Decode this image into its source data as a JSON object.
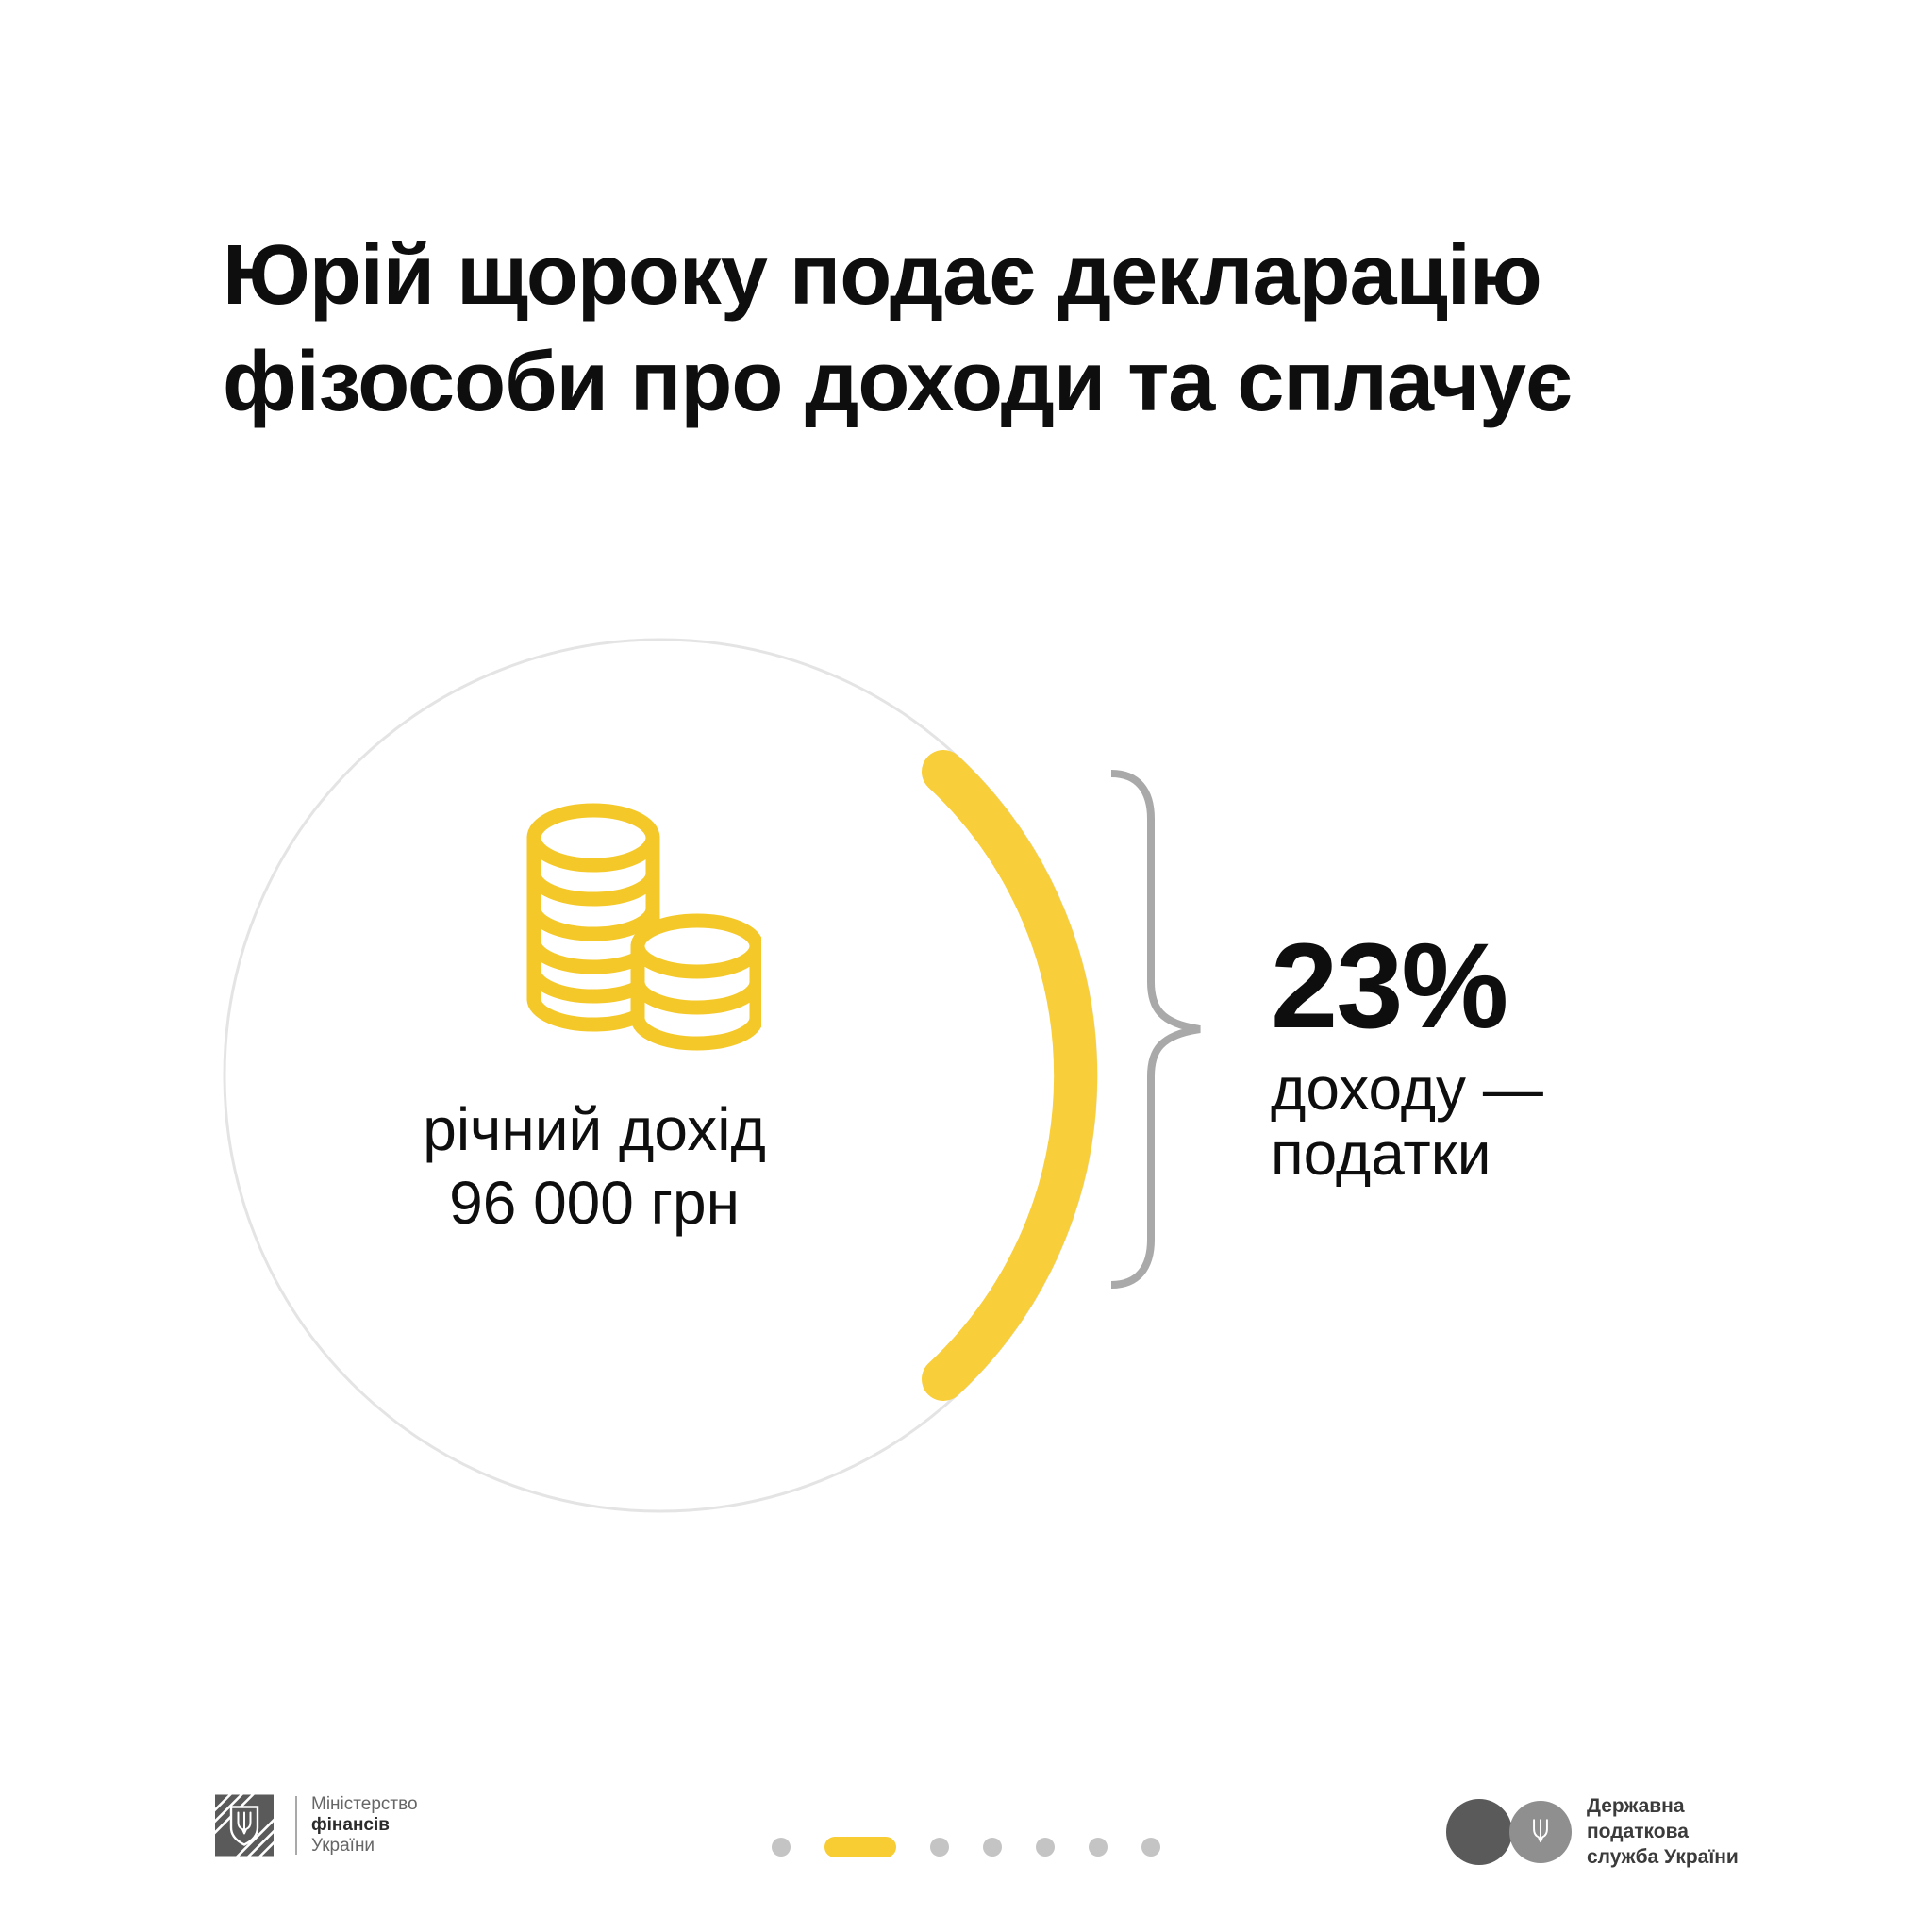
{
  "colors": {
    "background": "#FFFFFF",
    "accent_yellow": "#F8CE3B",
    "coin_yellow": "#F5C829",
    "pill_yellow": "#F8CC33",
    "circle_gray": "#E4E4E4",
    "brace_gray": "#A9A9A9",
    "dot_gray": "#C4C4C4",
    "text_black": "#0E0E0E",
    "footer_dark": "#3B3B3B",
    "footer_gray": "#666666",
    "logo_dark": "#5A5A5A",
    "logo_mid": "#8F8F8F"
  },
  "title": {
    "line1": "Юрій щороку подає декларацію",
    "line2": "фізособи про доходи та сплачує"
  },
  "income_circle": {
    "icon": "coins-icon",
    "label_line1": "річний дохід",
    "label_line2": "96 000 грн"
  },
  "callout": {
    "percent": "23%",
    "line1": "доходу —",
    "line2": "податки"
  },
  "footer": {
    "minfin_logo": {
      "icon": "minfin-emblem-icon",
      "line1": "Міністерство",
      "line2": "фінансів",
      "line3": "України"
    },
    "pagination": {
      "total": 7,
      "active_index": 1
    },
    "tax_logo": {
      "icon": "trident-icon",
      "line1": "Державна",
      "line2": "податкова",
      "line3": "служба України"
    }
  }
}
